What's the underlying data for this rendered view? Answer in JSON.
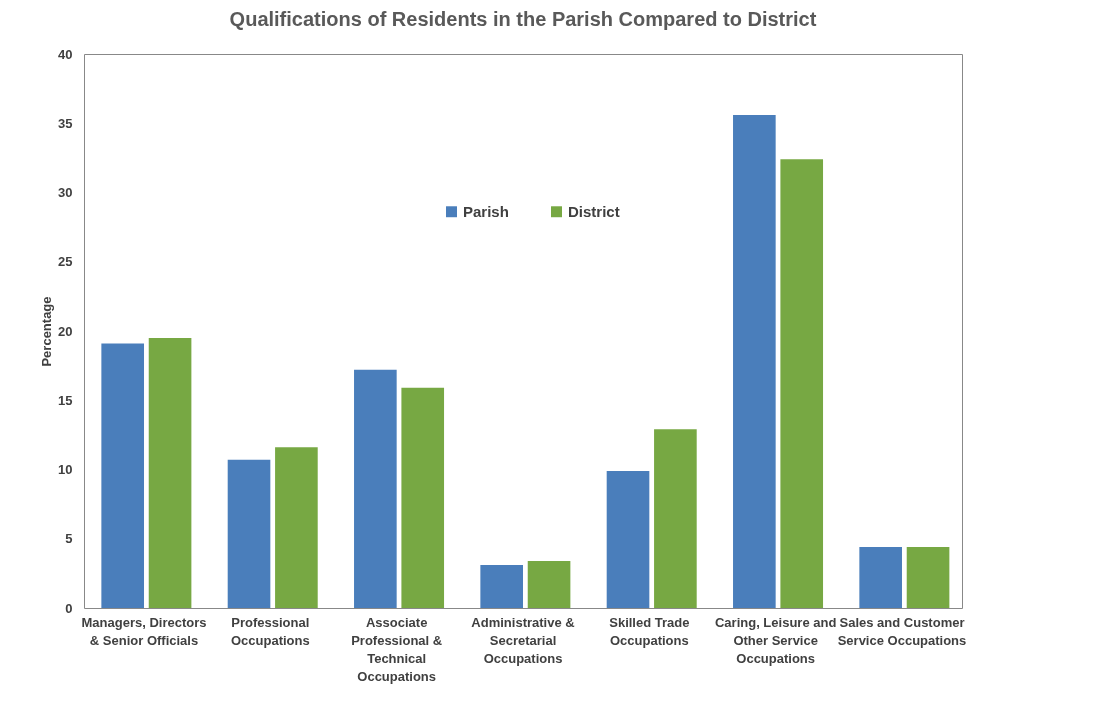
{
  "chart_data": {
    "type": "bar",
    "title": "Qualifications of Residents in the Parish Compared to District",
    "ylabel": "Percentage",
    "categories": [
      "Managers, Directors & Senior Officials",
      "Professional Occupations",
      "Associate Professional & Technical Occupations",
      "Administrative & Secretarial Occupations",
      "Skilled Trade Occupations",
      "Caring, Leisure and Other Service Occupations",
      "Sales and Customer Service Occupations"
    ],
    "series": [
      {
        "name": "Parish",
        "color": "#4a7ebb",
        "values": [
          19.1,
          10.7,
          17.2,
          3.1,
          9.9,
          35.6,
          4.4
        ]
      },
      {
        "name": "District",
        "color": "#77a843",
        "values": [
          19.5,
          11.6,
          15.9,
          3.4,
          12.9,
          32.4,
          4.4
        ]
      }
    ],
    "ylim": [
      0,
      40
    ],
    "yticks": [
      0,
      5,
      10,
      15,
      20,
      25,
      30,
      35,
      40
    ],
    "grid": false,
    "legend": "top"
  }
}
